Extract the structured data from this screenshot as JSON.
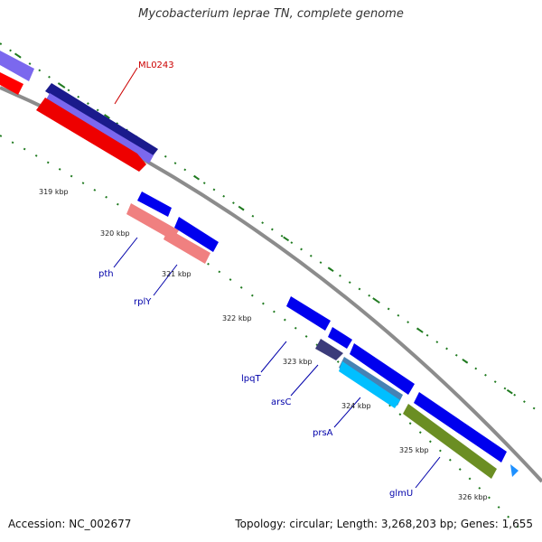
{
  "title": "Mycobacterium leprae TN, complete genome",
  "footer": {
    "accession": "Accession: NC_002677",
    "summary": "Topology: circular; Length: 3,268,203 bp; Genes: 1,655"
  },
  "kbp_labels": [
    "319 kbp",
    "320 kbp",
    "321 kbp",
    "322 kbp",
    "323 kbp",
    "324 kbp",
    "325 kbp",
    "326 kbp"
  ],
  "gene_labels": [
    "ML0243",
    "pth",
    "rplY",
    "lpqT",
    "arsC",
    "prsA",
    "glmU"
  ],
  "colors": {
    "backbone": "#8c8c8c",
    "ticks": "#1f7a1f",
    "label_red": "#cc0000",
    "label_blue": "#0000aa"
  }
}
